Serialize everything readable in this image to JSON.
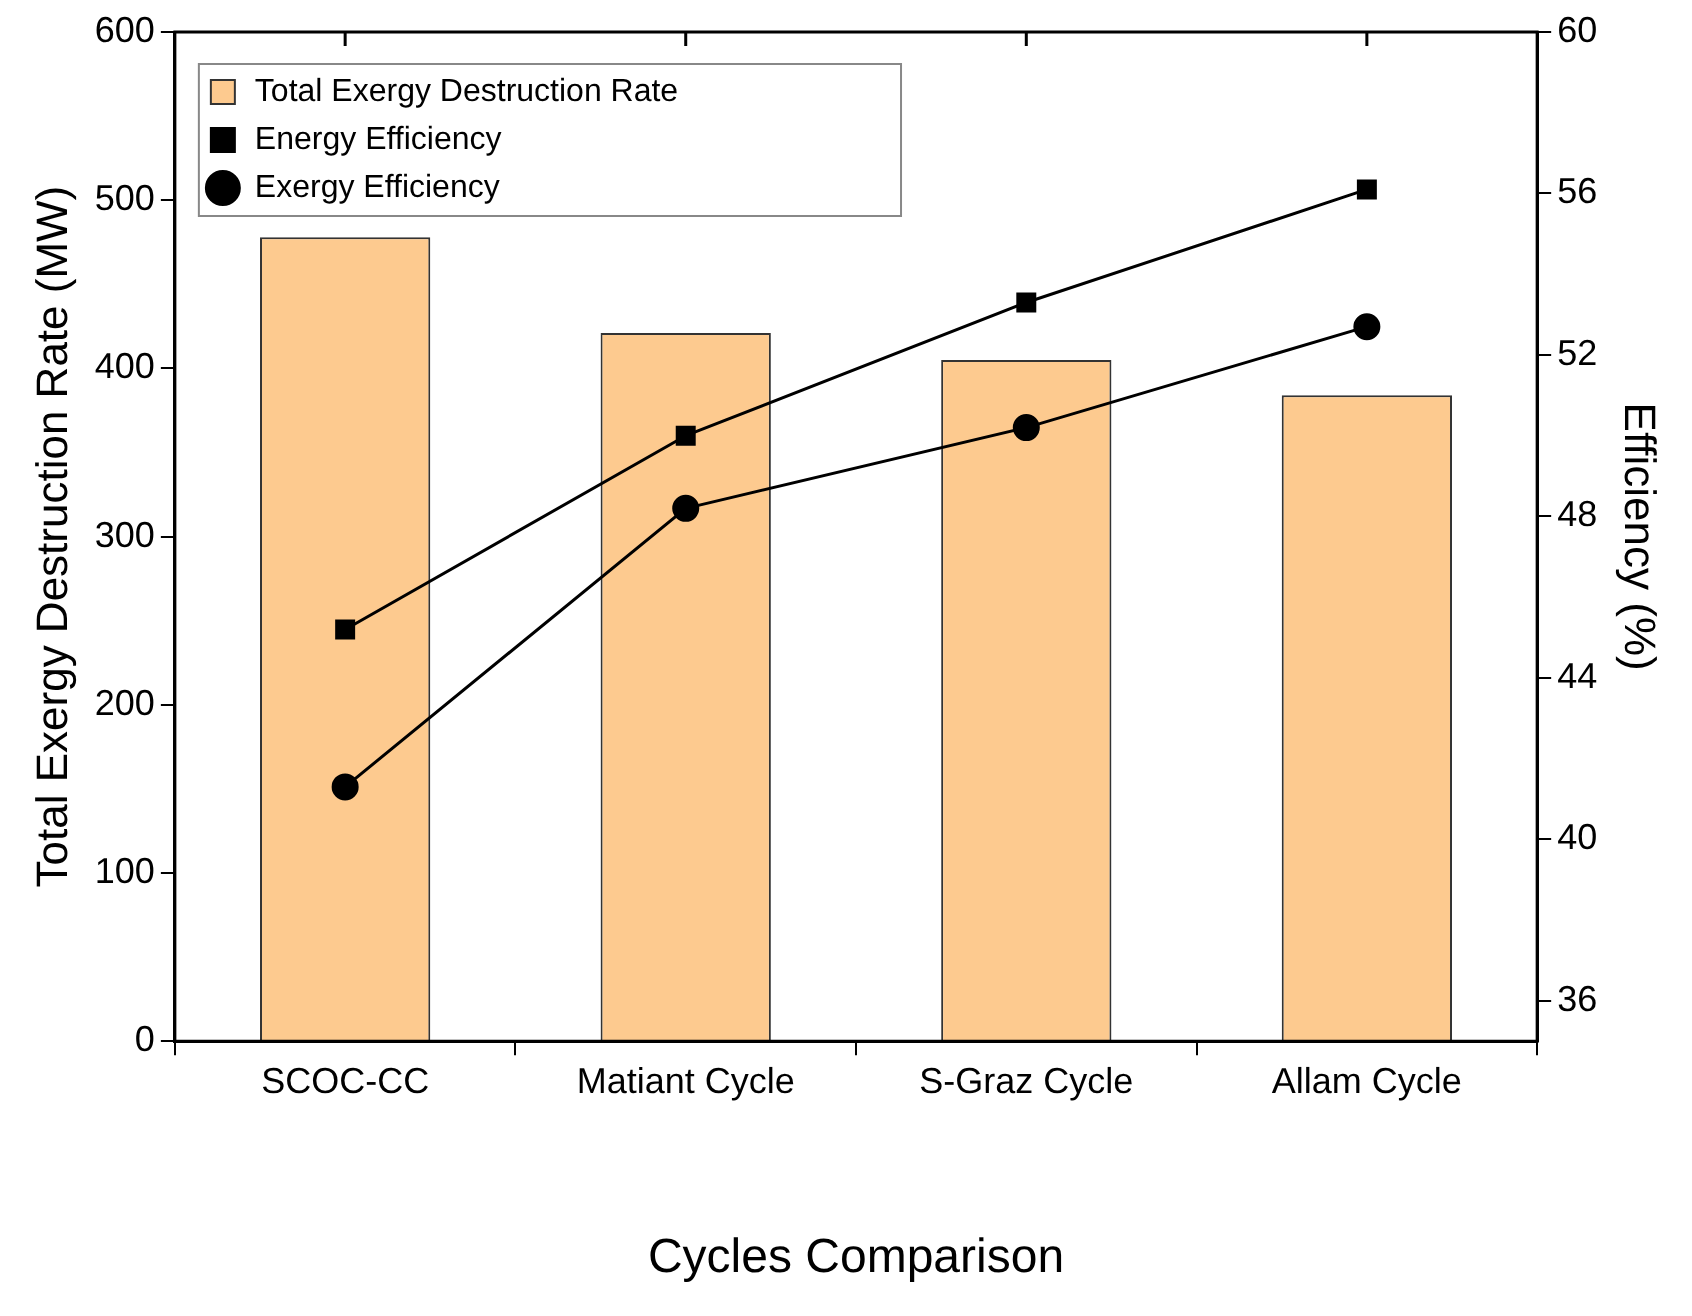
{
  "chart_data": {
    "type": "bar",
    "xlabel": "Cycles Comparison",
    "ylabel": "Total Exergy Destruction Rate (MW)",
    "y2label": "Efficiency (%)",
    "categories": [
      "SCOC-CC",
      "Matiant Cycle",
      "S-Graz Cycle",
      "Allam Cycle"
    ],
    "series": [
      {
        "name": "Total Exergy Destruction Rate",
        "color": "#fdca8f",
        "values": [
          478,
          421,
          405,
          384
        ]
      },
      {
        "name": "Energy Efficiency",
        "type": "line",
        "axis": "y2",
        "color": "#000000",
        "marker": "square",
        "values": [
          45.2,
          50.0,
          53.3,
          56.1
        ]
      },
      {
        "name": "Exergy Efficiency",
        "type": "line",
        "axis": "y2",
        "color": "#000000",
        "marker": "circle",
        "values": [
          41.3,
          48.2,
          50.2,
          52.7
        ]
      }
    ],
    "ylim": [
      0,
      600
    ],
    "yticks": [
      0,
      100,
      200,
      300,
      400,
      500,
      600
    ],
    "y2lim": [
      35,
      60
    ],
    "y2ticks": [
      36,
      40,
      44,
      48,
      52,
      56,
      60
    ],
    "grid": false,
    "legend": "top left"
  }
}
